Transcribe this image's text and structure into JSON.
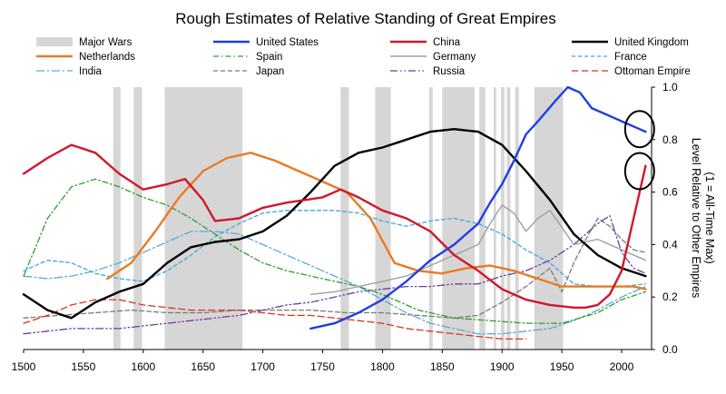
{
  "chart_data": {
    "type": "line",
    "title": "Rough Estimates of Relative Standing of Great Empires",
    "ylabel": "Level Relative to Other Empires (1 = All-Time Max)",
    "ylabel_lines": [
      "Level Relative to Other Empires",
      "(1 = All-Time Max)"
    ],
    "xlabel": "",
    "xlim": [
      1500,
      2025
    ],
    "ylim": [
      0,
      1.0
    ],
    "x_ticks": [
      "1500",
      "1550",
      "1600",
      "1650",
      "1700",
      "1750",
      "1800",
      "1850",
      "1900",
      "1950",
      "2000"
    ],
    "y_ticks": [
      "0.0",
      "0.2",
      "0.4",
      "0.6",
      "0.8",
      "1.0"
    ],
    "y_axis_side": "right",
    "grid": false,
    "legend_position": "top",
    "shaded_label": "Major Wars",
    "shaded_periods": [
      [
        1575,
        1581
      ],
      [
        1592,
        1599
      ],
      [
        1618,
        1683
      ],
      [
        1765,
        1772
      ],
      [
        1794,
        1807
      ],
      [
        1839,
        1842
      ],
      [
        1850,
        1877
      ],
      [
        1881,
        1886
      ],
      [
        1893,
        1895
      ],
      [
        1899,
        1902
      ],
      [
        1904,
        1907
      ],
      [
        1911,
        1914
      ],
      [
        1927,
        1951
      ]
    ],
    "series": [
      {
        "name": "United States",
        "color": "#1f3ee0",
        "dash": "solid",
        "width": 2.4,
        "x": [
          1740,
          1760,
          1780,
          1800,
          1820,
          1840,
          1860,
          1880,
          1890,
          1900,
          1910,
          1920,
          1930,
          1945,
          1955,
          1965,
          1975,
          1985,
          1995,
          2005,
          2015,
          2020
        ],
        "y": [
          0.08,
          0.1,
          0.14,
          0.19,
          0.26,
          0.34,
          0.4,
          0.48,
          0.56,
          0.63,
          0.72,
          0.82,
          0.87,
          0.95,
          1.0,
          0.98,
          0.92,
          0.9,
          0.88,
          0.86,
          0.84,
          0.83
        ]
      },
      {
        "name": "China",
        "color": "#d0182c",
        "dash": "solid",
        "width": 2.4,
        "x": [
          1500,
          1520,
          1540,
          1560,
          1580,
          1600,
          1620,
          1635,
          1650,
          1660,
          1680,
          1700,
          1720,
          1750,
          1765,
          1780,
          1800,
          1820,
          1840,
          1860,
          1880,
          1900,
          1920,
          1940,
          1960,
          1970,
          1980,
          1990,
          2000,
          2010,
          2020
        ],
        "y": [
          0.67,
          0.73,
          0.78,
          0.75,
          0.67,
          0.61,
          0.63,
          0.65,
          0.57,
          0.49,
          0.5,
          0.54,
          0.56,
          0.58,
          0.61,
          0.58,
          0.53,
          0.5,
          0.45,
          0.36,
          0.3,
          0.23,
          0.19,
          0.17,
          0.16,
          0.16,
          0.17,
          0.21,
          0.3,
          0.5,
          0.7
        ]
      },
      {
        "name": "United Kingdom",
        "color": "#000000",
        "dash": "solid",
        "width": 2.4,
        "x": [
          1500,
          1520,
          1540,
          1560,
          1580,
          1600,
          1620,
          1640,
          1660,
          1680,
          1700,
          1720,
          1740,
          1760,
          1780,
          1800,
          1820,
          1840,
          1860,
          1880,
          1900,
          1920,
          1940,
          1960,
          1980,
          2000,
          2020
        ],
        "y": [
          0.21,
          0.15,
          0.12,
          0.18,
          0.22,
          0.25,
          0.33,
          0.39,
          0.41,
          0.42,
          0.45,
          0.51,
          0.6,
          0.7,
          0.75,
          0.77,
          0.8,
          0.83,
          0.84,
          0.83,
          0.78,
          0.68,
          0.57,
          0.44,
          0.36,
          0.31,
          0.28
        ]
      },
      {
        "name": "Netherlands",
        "color": "#ea7a22",
        "dash": "solid",
        "width": 2.4,
        "x": [
          1570,
          1590,
          1610,
          1630,
          1650,
          1670,
          1690,
          1710,
          1730,
          1750,
          1770,
          1790,
          1810,
          1830,
          1850,
          1870,
          1890,
          1910,
          1930,
          1950,
          1970,
          1990,
          2010,
          2020
        ],
        "y": [
          0.27,
          0.33,
          0.45,
          0.58,
          0.68,
          0.73,
          0.75,
          0.72,
          0.68,
          0.64,
          0.6,
          0.5,
          0.33,
          0.3,
          0.29,
          0.31,
          0.32,
          0.3,
          0.27,
          0.24,
          0.24,
          0.24,
          0.24,
          0.23
        ]
      },
      {
        "name": "Spain",
        "color": "#2aa02a",
        "dash": "6,3,1.5,3",
        "width": 1.3,
        "x": [
          1500,
          1520,
          1540,
          1560,
          1580,
          1600,
          1620,
          1640,
          1660,
          1680,
          1700,
          1720,
          1750,
          1780,
          1800,
          1830,
          1860,
          1890,
          1920,
          1950,
          1980,
          2000,
          2020
        ],
        "y": [
          0.28,
          0.5,
          0.62,
          0.65,
          0.62,
          0.58,
          0.55,
          0.5,
          0.44,
          0.38,
          0.33,
          0.3,
          0.27,
          0.24,
          0.21,
          0.15,
          0.12,
          0.11,
          0.1,
          0.1,
          0.14,
          0.19,
          0.22
        ]
      },
      {
        "name": "Germany",
        "color": "#a0a0a0",
        "dash": "solid",
        "width": 1.4,
        "x": [
          1740,
          1760,
          1780,
          1800,
          1820,
          1840,
          1860,
          1880,
          1890,
          1900,
          1910,
          1920,
          1930,
          1940,
          1960,
          1980,
          2000,
          2020
        ],
        "y": [
          0.21,
          0.22,
          0.24,
          0.26,
          0.28,
          0.32,
          0.36,
          0.4,
          0.48,
          0.55,
          0.52,
          0.45,
          0.5,
          0.53,
          0.4,
          0.42,
          0.38,
          0.34
        ]
      },
      {
        "name": "France",
        "color": "#3fa9dc",
        "dash": "4,3",
        "width": 1.3,
        "x": [
          1500,
          1520,
          1540,
          1560,
          1580,
          1600,
          1620,
          1640,
          1660,
          1680,
          1700,
          1720,
          1740,
          1760,
          1780,
          1800,
          1820,
          1840,
          1860,
          1880,
          1900,
          1920,
          1940,
          1960,
          1980,
          2000,
          2020
        ],
        "y": [
          0.3,
          0.34,
          0.33,
          0.29,
          0.27,
          0.26,
          0.3,
          0.36,
          0.43,
          0.48,
          0.52,
          0.53,
          0.53,
          0.53,
          0.52,
          0.49,
          0.47,
          0.49,
          0.5,
          0.48,
          0.44,
          0.38,
          0.33,
          0.25,
          0.24,
          0.24,
          0.25
        ]
      },
      {
        "name": "India",
        "color": "#5aaad8",
        "dash": "9,3,2,3",
        "width": 1.3,
        "x": [
          1500,
          1520,
          1540,
          1560,
          1580,
          1600,
          1620,
          1640,
          1660,
          1680,
          1700,
          1720,
          1740,
          1760,
          1780,
          1800,
          1820,
          1840,
          1860,
          1880,
          1900,
          1920,
          1940,
          1960,
          1980,
          2000,
          2020
        ],
        "y": [
          0.28,
          0.27,
          0.28,
          0.3,
          0.33,
          0.37,
          0.41,
          0.45,
          0.45,
          0.44,
          0.4,
          0.36,
          0.32,
          0.28,
          0.24,
          0.19,
          0.14,
          0.1,
          0.08,
          0.06,
          0.06,
          0.07,
          0.08,
          0.11,
          0.15,
          0.2,
          0.24
        ]
      },
      {
        "name": "Japan",
        "color": "#7a7a7a",
        "dash": "5,3",
        "width": 1.3,
        "x": [
          1500,
          1530,
          1560,
          1590,
          1620,
          1650,
          1680,
          1710,
          1740,
          1770,
          1800,
          1830,
          1860,
          1880,
          1900,
          1920,
          1940,
          1950,
          1960,
          1970,
          1980,
          1990,
          2000,
          2010,
          2020
        ],
        "y": [
          0.12,
          0.13,
          0.14,
          0.15,
          0.14,
          0.14,
          0.15,
          0.15,
          0.15,
          0.14,
          0.14,
          0.13,
          0.12,
          0.13,
          0.18,
          0.24,
          0.31,
          0.22,
          0.33,
          0.42,
          0.5,
          0.47,
          0.42,
          0.38,
          0.37
        ]
      },
      {
        "name": "Russia",
        "color": "#6a3fa0",
        "dash": "8,3,1.5,3,1.5,3",
        "width": 1.3,
        "x": [
          1500,
          1520,
          1540,
          1560,
          1580,
          1600,
          1620,
          1640,
          1660,
          1680,
          1700,
          1720,
          1740,
          1760,
          1780,
          1800,
          1820,
          1840,
          1860,
          1880,
          1900,
          1920,
          1940,
          1960,
          1980,
          1990,
          2000,
          2010,
          2020
        ],
        "y": [
          0.06,
          0.07,
          0.08,
          0.08,
          0.08,
          0.09,
          0.1,
          0.11,
          0.12,
          0.13,
          0.15,
          0.17,
          0.18,
          0.2,
          0.22,
          0.23,
          0.24,
          0.24,
          0.25,
          0.25,
          0.28,
          0.3,
          0.34,
          0.4,
          0.48,
          0.51,
          0.37,
          0.31,
          0.29
        ]
      },
      {
        "name": "Ottoman Empire",
        "color": "#e0301c",
        "dash": "7,4",
        "width": 1.3,
        "x": [
          1500,
          1520,
          1540,
          1560,
          1580,
          1600,
          1620,
          1640,
          1660,
          1680,
          1700,
          1720,
          1740,
          1760,
          1780,
          1800,
          1820,
          1840,
          1860,
          1880,
          1900,
          1920
        ],
        "y": [
          0.1,
          0.13,
          0.17,
          0.19,
          0.19,
          0.17,
          0.16,
          0.15,
          0.15,
          0.15,
          0.14,
          0.13,
          0.13,
          0.12,
          0.11,
          0.1,
          0.08,
          0.07,
          0.06,
          0.05,
          0.04,
          0.04
        ]
      }
    ],
    "annotations": [
      {
        "type": "circle",
        "target": "United States",
        "x": 2015,
        "y": 0.84
      },
      {
        "type": "circle",
        "target": "China",
        "x": 2015,
        "y": 0.68
      }
    ]
  }
}
